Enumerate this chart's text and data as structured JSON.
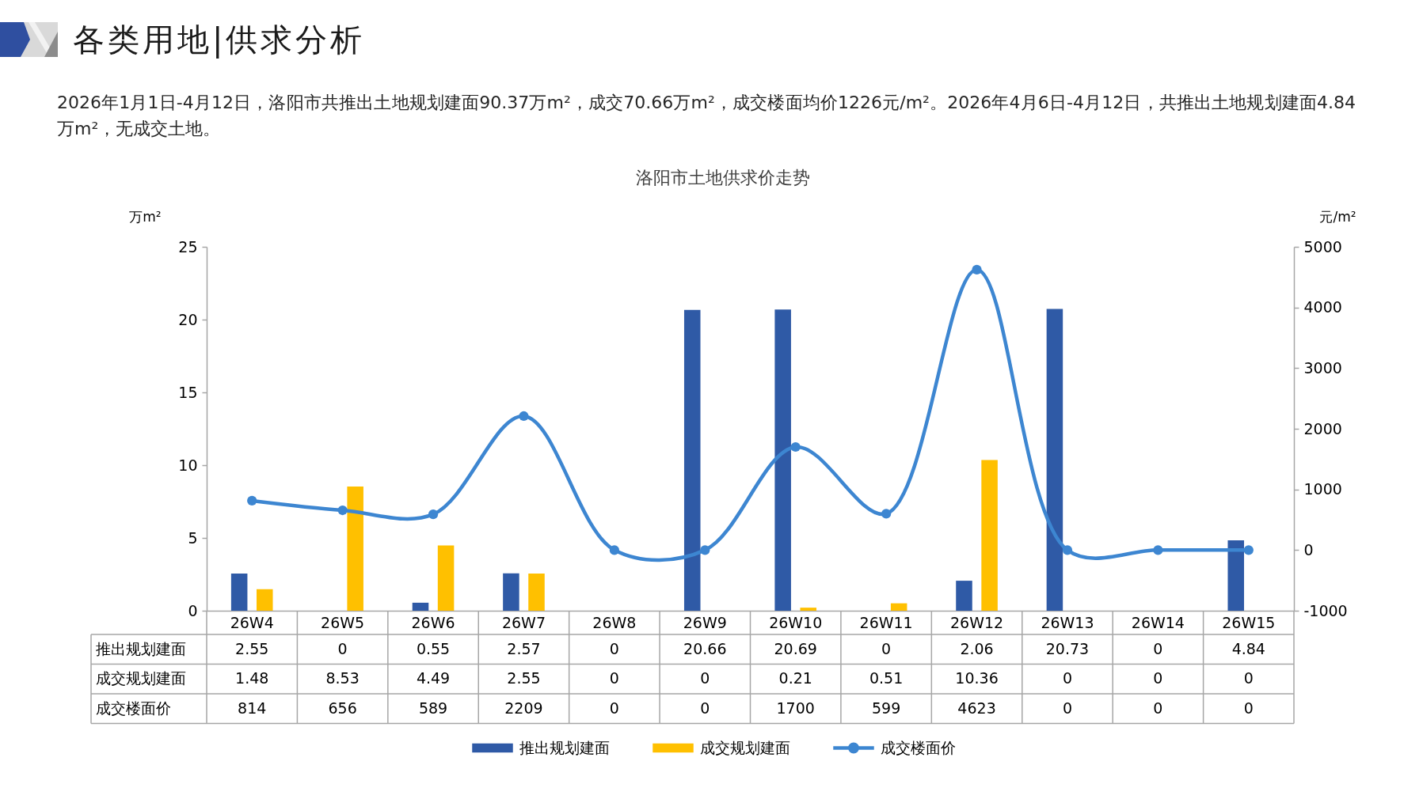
{
  "chart_data": {
    "type": "bar",
    "title": "洛阳市土地供求价走势",
    "annotations": [
      "各类用地|供求分析",
      "2026年1月1日-4月12日，洛阳市共推出土地规划建面90.37万m²，成交70.66万m²，成交楼面均价1226元/m²。2026年4月6日-4月12日，共推出土地规划建面4.84万m²，无成交土地。"
    ],
    "ylabel": "万m²",
    "y2label": "元/m²",
    "categories": [
      "26W4",
      "26W5",
      "26W6",
      "26W7",
      "26W8",
      "26W9",
      "26W10",
      "26W11",
      "26W12",
      "26W13",
      "26W14",
      "26W15"
    ],
    "series": [
      {
        "name": "推出规划建面",
        "color": "#2f5aa6",
        "values": [
          2.55,
          0,
          0.55,
          2.57,
          0,
          20.66,
          20.69,
          0,
          2.06,
          20.73,
          0,
          4.84
        ]
      },
      {
        "name": "成交规划建面",
        "color": "#ffc000",
        "values": [
          1.48,
          8.53,
          4.49,
          2.55,
          0,
          0,
          0.21,
          0.51,
          10.36,
          0,
          0,
          0
        ]
      },
      {
        "name": "成交楼面价",
        "type": "line",
        "axis": "y2",
        "color": "#3d86d1",
        "values": [
          814,
          656,
          589,
          2209,
          0,
          0,
          1700,
          599,
          4623,
          0,
          0,
          0
        ]
      }
    ],
    "ylim": [
      0,
      25
    ],
    "yticks": [
      0,
      5,
      10,
      15,
      20,
      25
    ],
    "y2lim": [
      -1000,
      5000
    ],
    "y2ticks": [
      -1000,
      0,
      1000,
      2000,
      3000,
      4000,
      5000
    ],
    "grid": false,
    "legend": "bottom",
    "marker": "circle",
    "data_labels": true
  }
}
